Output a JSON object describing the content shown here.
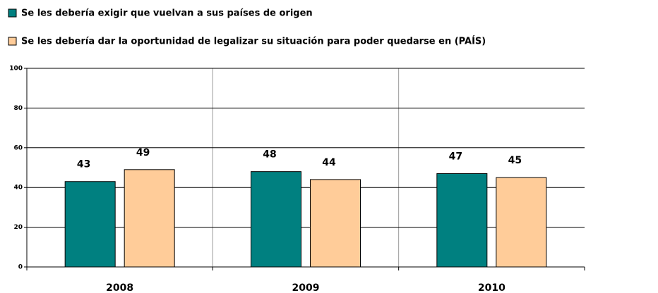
{
  "chart_data": {
    "type": "bar",
    "categories": [
      "2008",
      "2009",
      "2010"
    ],
    "series": [
      {
        "name": "Se les debería exigir que vuelvan a sus países de origen",
        "color": "#008080",
        "values": [
          43,
          48,
          47
        ]
      },
      {
        "name": "Se les debería dar la oportunidad de legalizar su situación para poder quedarse en (PAÍS)",
        "color": "#ffcc99",
        "values": [
          49,
          44,
          45
        ]
      }
    ],
    "ylim": [
      0,
      100
    ],
    "yticks": [
      0,
      20,
      40,
      60,
      80,
      100
    ],
    "grid": true
  }
}
